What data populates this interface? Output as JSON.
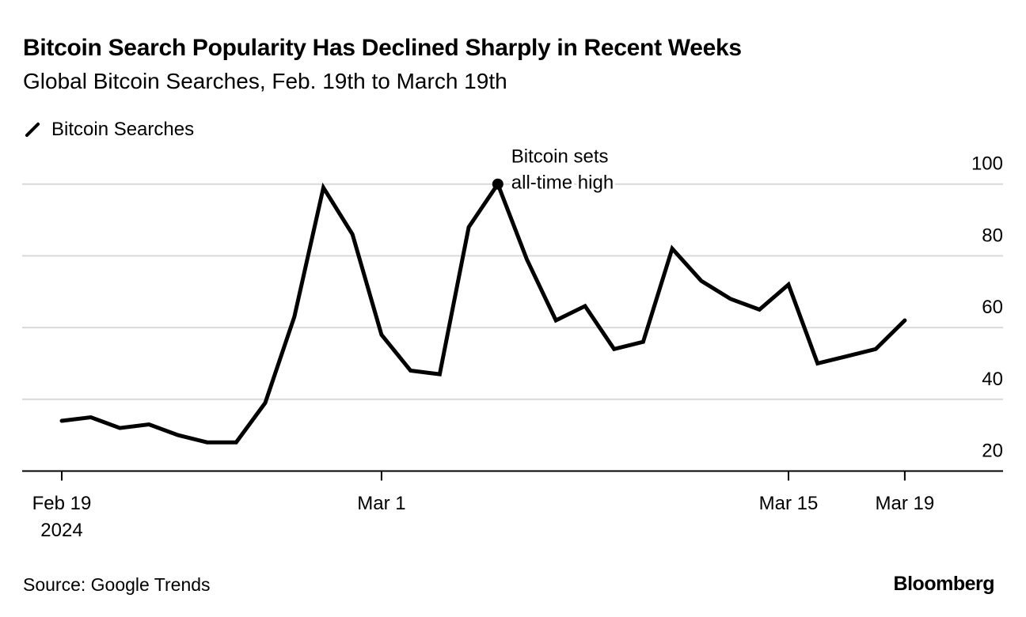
{
  "title": "Bitcoin Search Popularity Has Declined Sharply in Recent Weeks",
  "subtitle": "Global Bitcoin Searches, Feb. 19th to March 19th",
  "source": "Source: Google Trends",
  "logo": "Bloomberg",
  "chart_data": {
    "type": "line",
    "title": "Bitcoin Search Popularity Has Declined Sharply in Recent Weeks",
    "subtitle": "Global Bitcoin Searches, Feb. 19th to March 19th",
    "xlabel": "",
    "ylabel": "",
    "ylim": [
      20,
      100
    ],
    "yticks": [
      20,
      40,
      60,
      80,
      100
    ],
    "y_axis_side": "right",
    "grid": true,
    "legend_placement": "top-left",
    "xticks": [
      {
        "date": "2024-02-19",
        "label": "Feb 19",
        "sublabel": "2024"
      },
      {
        "date": "2024-03-01",
        "label": "Mar 1",
        "sublabel": ""
      },
      {
        "date": "2024-03-15",
        "label": "Mar 15",
        "sublabel": ""
      },
      {
        "date": "2024-03-19",
        "label": "Mar 19",
        "sublabel": ""
      }
    ],
    "series": [
      {
        "name": "Bitcoin Searches",
        "color": "#000000",
        "x": [
          "2024-02-19",
          "2024-02-20",
          "2024-02-21",
          "2024-02-22",
          "2024-02-23",
          "2024-02-24",
          "2024-02-25",
          "2024-02-26",
          "2024-02-27",
          "2024-02-28",
          "2024-02-29",
          "2024-03-01",
          "2024-03-02",
          "2024-03-03",
          "2024-03-04",
          "2024-03-05",
          "2024-03-06",
          "2024-03-07",
          "2024-03-08",
          "2024-03-09",
          "2024-03-10",
          "2024-03-11",
          "2024-03-12",
          "2024-03-13",
          "2024-03-14",
          "2024-03-15",
          "2024-03-16",
          "2024-03-17",
          "2024-03-18",
          "2024-03-19"
        ],
        "values": [
          34,
          35,
          32,
          33,
          30,
          28,
          28,
          39,
          63,
          99,
          86,
          58,
          48,
          47,
          88,
          100,
          79,
          62,
          66,
          54,
          56,
          82,
          73,
          68,
          65,
          72,
          50,
          52,
          54,
          62
        ]
      }
    ],
    "annotations": [
      {
        "date": "2024-03-05",
        "value": 100,
        "lines": [
          "Bitcoin sets",
          "all-time high"
        ]
      }
    ]
  }
}
